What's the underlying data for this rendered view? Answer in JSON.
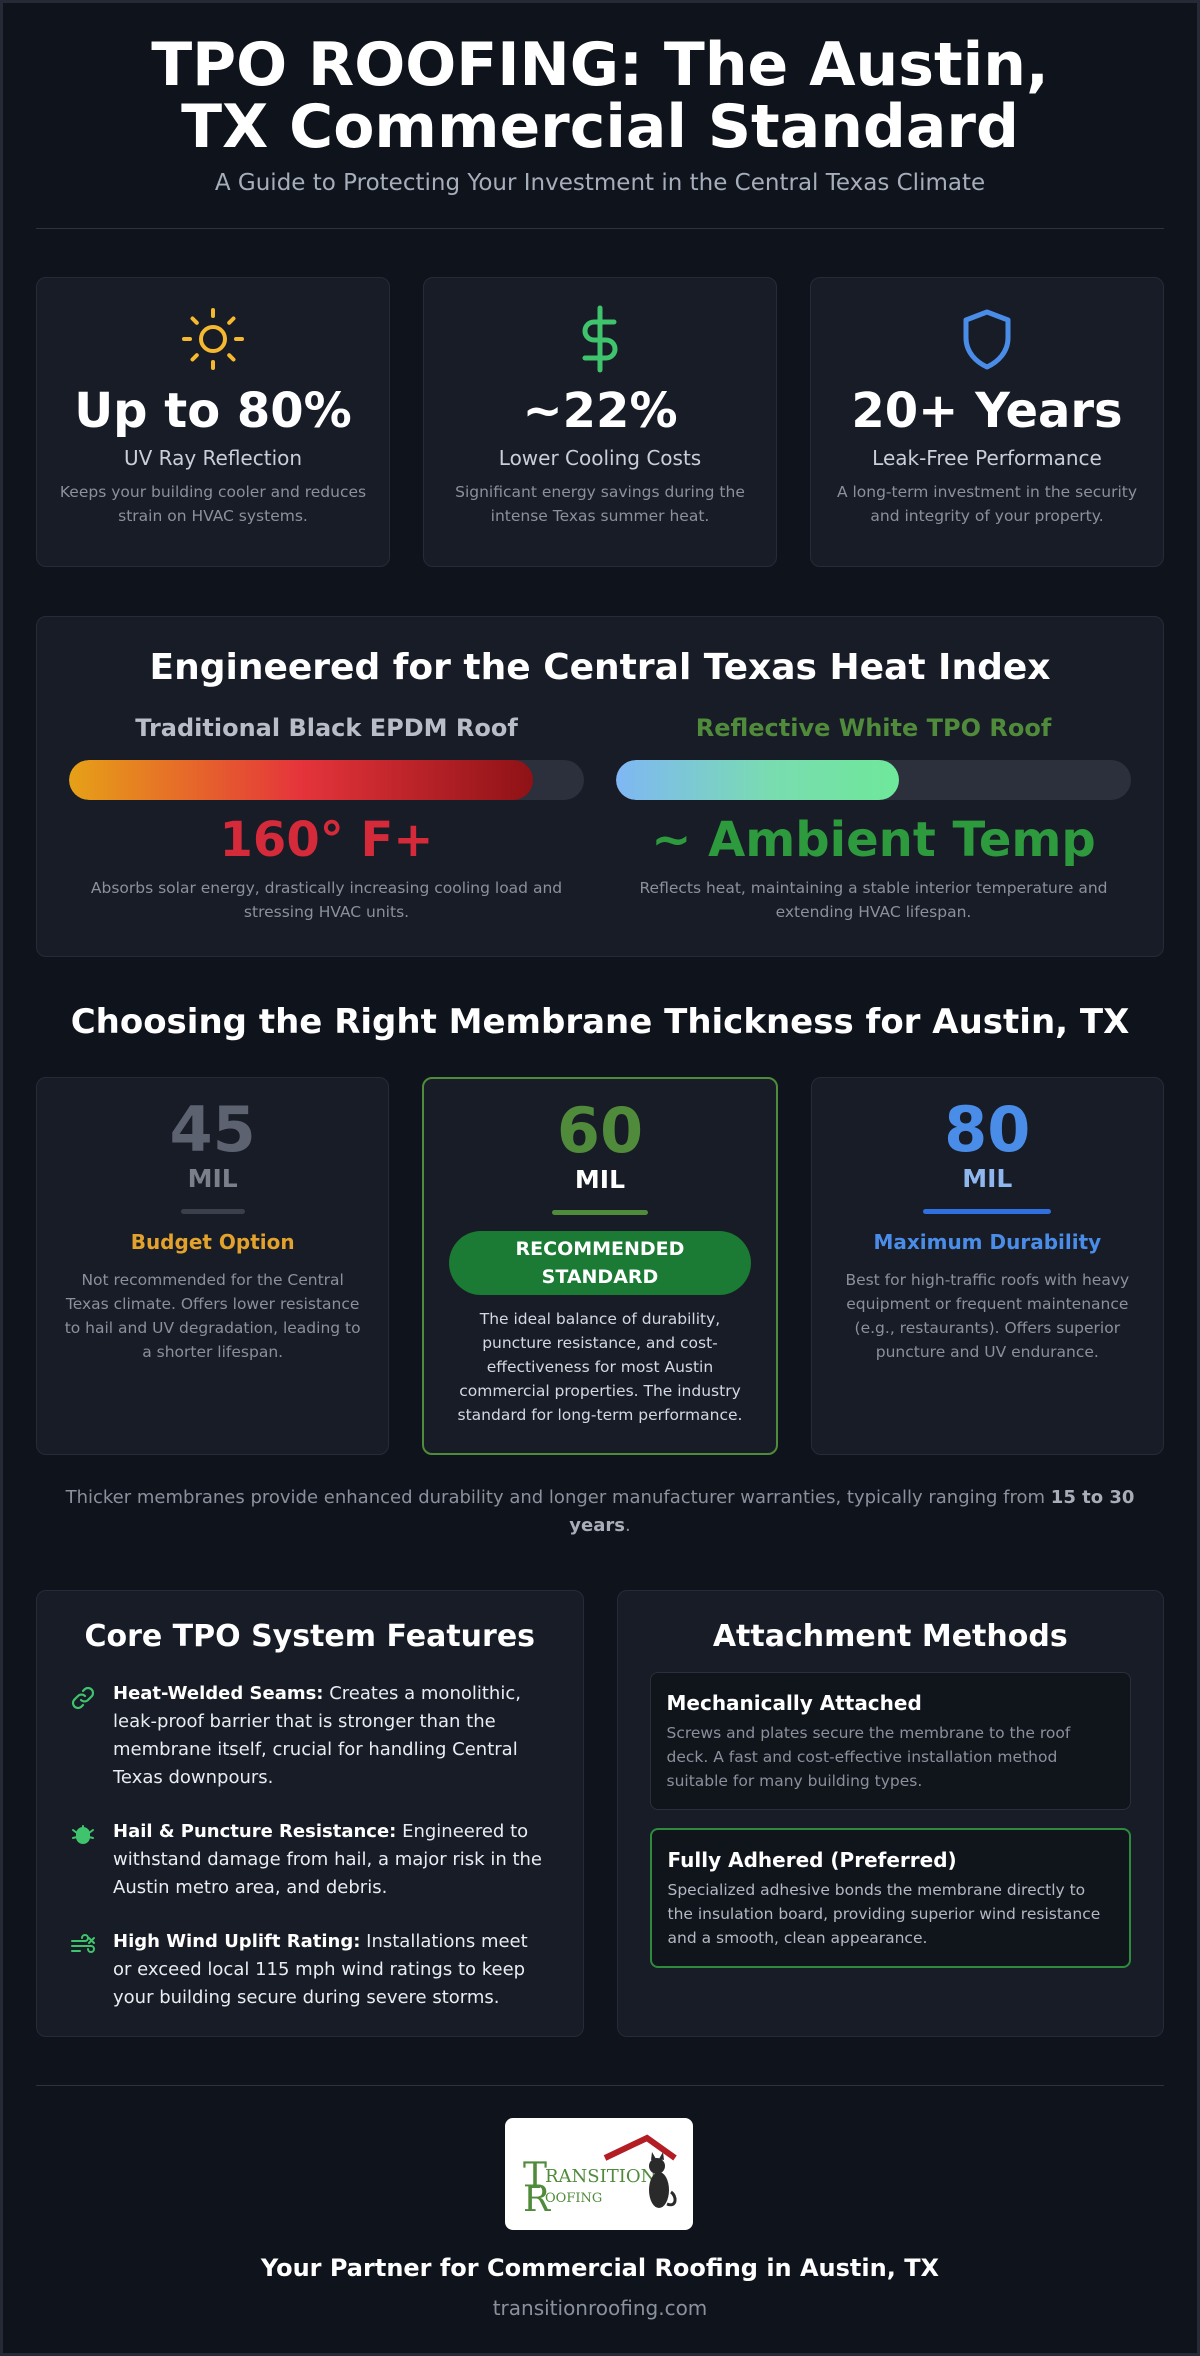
{
  "header": {
    "title": "TPO ROOFING: The Austin, TX Commercial Standard",
    "subtitle": "A Guide to Protecting Your Investment in the Central Texas Climate"
  },
  "stats": [
    {
      "icon": "sun-icon",
      "value": "Up to 80%",
      "label": "UV Ray Reflection",
      "desc": "Keeps your building cooler and reduces strain on HVAC systems.",
      "color": "#f5b82e"
    },
    {
      "icon": "dollar-icon",
      "value": "~22%",
      "label": "Lower Cooling Costs",
      "desc": "Significant energy savings during the intense Texas summer heat.",
      "color": "#3fc46d"
    },
    {
      "icon": "shield-icon",
      "value": "20+ Years",
      "label": "Leak-Free Performance",
      "desc": "A long-term investment in the security and integrity of your property.",
      "color": "#4a8de8"
    }
  ],
  "heat": {
    "title": "Engineered for the Central Texas Heat Index",
    "black": {
      "name": "Traditional Black EPDM Roof",
      "level": 0.9,
      "temp": "160° F+",
      "desc": "Absorbs solar energy, drastically increasing cooling load and stressing HVAC units.",
      "name_color": "#b8bdc7",
      "temp_color": "#d52a3a"
    },
    "white": {
      "name": "Reflective White TPO Roof",
      "level": 0.55,
      "temp": "~ Ambient Temp",
      "desc": "Reflects heat, maintaining a stable interior temperature and extending HVAC lifespan.",
      "name_color": "#4f8b3a",
      "temp_color": "#2e9a3e"
    }
  },
  "thickness": {
    "title": "Choosing the Right Membrane Thickness for Austin, TX",
    "options": [
      {
        "num": "45",
        "unit": "MIL",
        "label": "Budget Option",
        "desc": "Not recommended for the Central Texas climate. Offers lower resistance to hail and UV degradation, leading to a shorter lifespan.",
        "num_color": "#5c6270",
        "unit_color": "#7a7f8b",
        "line_color": "#3a3f4b",
        "label_color": "#e3a22b"
      },
      {
        "num": "60",
        "unit": "MIL",
        "badge": "RECOMMENDED STANDARD",
        "desc": "The ideal balance of durability, puncture resistance, and cost-effectiveness for most Austin commercial properties. The industry standard for long-term performance.",
        "num_color": "#4f8b3a",
        "unit_color": "#ffffff",
        "line_color": "#4f8b3a"
      },
      {
        "num": "80",
        "unit": "MIL",
        "label": "Maximum Durability",
        "desc": "Best for high-traffic roofs with heavy equipment or frequent maintenance (e.g., restaurants). Offers superior puncture and UV endurance.",
        "num_color": "#4a8de8",
        "unit_color": "#8fb6ee",
        "line_color": "#2f6fe0",
        "label_color": "#4a8de8"
      }
    ],
    "note_pre": "Thicker membranes provide enhanced durability and longer manufacturer warranties, typically ranging from ",
    "note_bold": "15 to 30 years",
    "note_post": "."
  },
  "features": {
    "title": "Core TPO System Features",
    "items": [
      {
        "icon": "link-icon",
        "bold": "Heat-Welded Seams:",
        "text": " Creates a monolithic, leak-proof barrier that is stronger than the membrane itself, crucial for handling Central Texas downpours."
      },
      {
        "icon": "hail-icon",
        "bold": "Hail & Puncture Resistance:",
        "text": " Engineered to withstand damage from hail, a major risk in the Austin metro area, and debris."
      },
      {
        "icon": "wind-icon",
        "bold": "High Wind Uplift Rating:",
        "text": " Installations meet or exceed local 115 mph wind ratings to keep your building secure during severe storms."
      }
    ]
  },
  "attachment": {
    "title": "Attachment Methods",
    "methods": [
      {
        "title": "Mechanically Attached",
        "text": "Screws and plates secure the membrane to the roof deck. A fast and cost-effective installation method suitable for many building types."
      },
      {
        "title": "Fully Adhered (Preferred)",
        "text": "Specialized adhesive bonds the membrane directly to the insulation board, providing superior wind resistance and a smooth, clean appearance."
      }
    ]
  },
  "logo": {
    "line1": "RANSITION",
    "line2": "OOFING",
    "letter_t": "T",
    "letter_r": "R"
  },
  "footer": {
    "title": "Your Partner for Commercial Roofing in Austin, TX",
    "url": "transitionroofing.com"
  }
}
